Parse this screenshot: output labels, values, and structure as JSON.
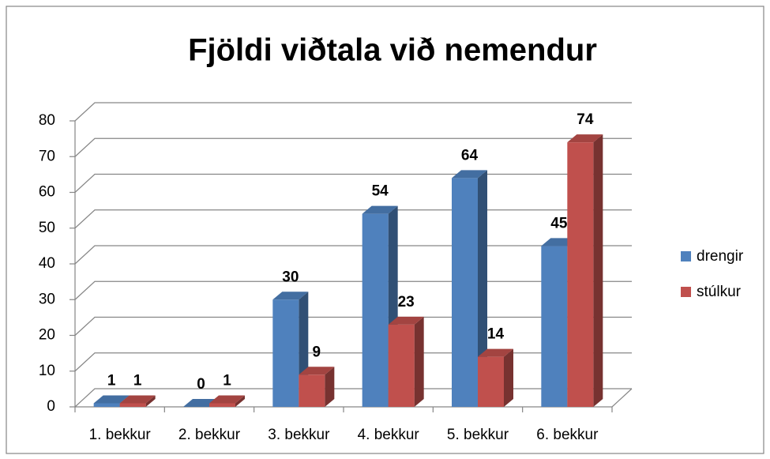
{
  "chart_data": {
    "type": "bar3d",
    "title": "Fjöldi viðtala við nemendur",
    "categories": [
      "1. bekkur",
      "2. bekkur",
      "3. bekkur",
      "4. bekkur",
      "5. bekkur",
      "6. bekkur"
    ],
    "series": [
      {
        "name": "drengir",
        "color": "#4f81bd",
        "values": [
          1,
          0,
          30,
          54,
          64,
          45
        ]
      },
      {
        "name": "stúlkur",
        "color": "#c0504d",
        "values": [
          1,
          1,
          9,
          23,
          14,
          74
        ]
      }
    ],
    "ylim": [
      0,
      80
    ],
    "yticks": [
      0,
      10,
      20,
      30,
      40,
      50,
      60,
      70,
      80
    ],
    "grid": true,
    "legend": "right"
  }
}
